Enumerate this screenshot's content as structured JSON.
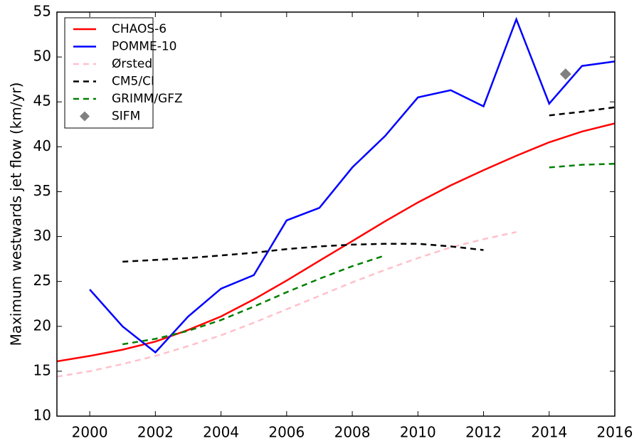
{
  "chart_data": {
    "type": "line",
    "y_label": "Maximum westwards jet flow (km/yr)",
    "x": [
      1999,
      2000,
      2001,
      2002,
      2003,
      2004,
      2005,
      2006,
      2007,
      2008,
      2009,
      2010,
      2011,
      2012,
      2013,
      2014,
      2015,
      2016
    ],
    "series": [
      {
        "name": "CHAOS-6",
        "color": "#ff0000",
        "style": "solid",
        "values": [
          16.1,
          16.7,
          17.4,
          18.3,
          19.6,
          21.1,
          23.0,
          25.1,
          27.3,
          29.5,
          31.7,
          33.8,
          35.7,
          37.4,
          39.0,
          40.5,
          41.7,
          42.6
        ]
      },
      {
        "name": "POMME-10",
        "color": "#0000ff",
        "style": "solid",
        "values": [
          null,
          24.1,
          20.0,
          17.1,
          21.1,
          24.2,
          25.7,
          31.8,
          33.2,
          37.7,
          41.2,
          45.5,
          46.3,
          44.5,
          54.2,
          44.8,
          49.0,
          49.5
        ]
      },
      {
        "name": "Ørsted",
        "color": "#ffc0cb",
        "style": "dashed",
        "values": [
          14.4,
          15.0,
          15.8,
          16.7,
          17.8,
          19.0,
          20.4,
          21.9,
          23.4,
          24.9,
          26.3,
          27.6,
          28.8,
          29.7,
          30.5,
          null,
          null,
          null
        ]
      },
      {
        "name": "CM5/CI",
        "color": "#000000",
        "style": "dashed",
        "values": [
          null,
          null,
          27.2,
          27.4,
          27.6,
          27.9,
          28.2,
          28.6,
          28.9,
          29.1,
          29.2,
          29.2,
          28.9,
          28.5,
          null,
          43.5,
          43.9,
          44.4
        ]
      },
      {
        "name": "GRIMM/GFZ",
        "color": "#008000",
        "style": "dashed",
        "values": [
          null,
          null,
          18.0,
          18.6,
          19.5,
          20.7,
          22.2,
          23.8,
          25.3,
          26.7,
          27.9,
          null,
          null,
          null,
          null,
          37.7,
          38.0,
          38.1
        ]
      },
      {
        "name": "SIFM",
        "color": "#808080",
        "style": "marker",
        "marker": "diamond",
        "x": [
          2014.5
        ],
        "values": [
          48.1
        ]
      }
    ],
    "xlim": [
      1999,
      2016
    ],
    "xticks": [
      2000,
      2002,
      2004,
      2006,
      2008,
      2010,
      2012,
      2014,
      2016
    ],
    "ylim": [
      10,
      55
    ],
    "yticks": [
      10,
      15,
      20,
      25,
      30,
      35,
      40,
      45,
      50,
      55
    ],
    "legend": "upper left",
    "grid": false
  }
}
